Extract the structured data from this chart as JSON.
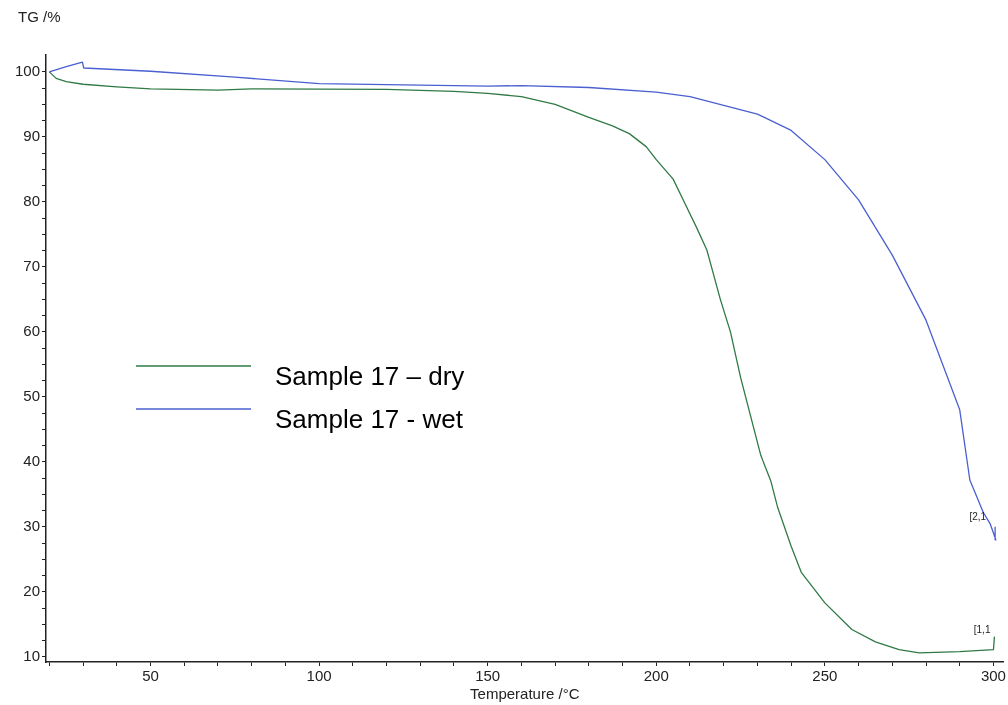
{
  "chart_data": {
    "type": "line",
    "xlabel": "Temperature /°C",
    "ylabel": "TG /%",
    "xlim": [
      19,
      303
    ],
    "ylim": [
      9.2,
      102.6
    ],
    "xticks": [
      {
        "value": 20,
        "label": null
      },
      {
        "value": 30,
        "label": null
      },
      {
        "value": 40,
        "label": null
      },
      50,
      {
        "value": 60,
        "label": null
      },
      {
        "value": 70,
        "label": null
      },
      {
        "value": 80,
        "label": null
      },
      {
        "value": 90,
        "label": null
      },
      100,
      {
        "value": 110,
        "label": null
      },
      {
        "value": 120,
        "label": null
      },
      {
        "value": 130,
        "label": null
      },
      {
        "value": 140,
        "label": null
      },
      150,
      {
        "value": 160,
        "label": null
      },
      {
        "value": 170,
        "label": null
      },
      {
        "value": 180,
        "label": null
      },
      {
        "value": 190,
        "label": null
      },
      200,
      {
        "value": 210,
        "label": null
      },
      {
        "value": 220,
        "label": null
      },
      {
        "value": 230,
        "label": null
      },
      {
        "value": 240,
        "label": null
      },
      250,
      {
        "value": 260,
        "label": null
      },
      {
        "value": 270,
        "label": null
      },
      {
        "value": 280,
        "label": null
      },
      {
        "value": 290,
        "label": null
      },
      300
    ],
    "yticks": [
      10,
      {
        "value": 12.5,
        "label": null
      },
      {
        "value": 15,
        "label": null
      },
      {
        "value": 17.5,
        "label": null
      },
      20,
      {
        "value": 22.5,
        "label": null
      },
      {
        "value": 25,
        "label": null
      },
      {
        "value": 27.5,
        "label": null
      },
      30,
      {
        "value": 32.5,
        "label": null
      },
      {
        "value": 35,
        "label": null
      },
      {
        "value": 37.5,
        "label": null
      },
      40,
      {
        "value": 42.5,
        "label": null
      },
      {
        "value": 45,
        "label": null
      },
      {
        "value": 47.5,
        "label": null
      },
      50,
      {
        "value": 52.5,
        "label": null
      },
      {
        "value": 55,
        "label": null
      },
      {
        "value": 57.5,
        "label": null
      },
      60,
      {
        "value": 62.5,
        "label": null
      },
      {
        "value": 65,
        "label": null
      },
      {
        "value": 67.5,
        "label": null
      },
      70,
      {
        "value": 72.5,
        "label": null
      },
      {
        "value": 75,
        "label": null
      },
      {
        "value": 77.5,
        "label": null
      },
      80,
      {
        "value": 82.5,
        "label": null
      },
      {
        "value": 85,
        "label": null
      },
      {
        "value": 87.5,
        "label": null
      },
      90,
      {
        "value": 92.5,
        "label": null
      },
      {
        "value": 95,
        "label": null
      },
      {
        "value": 97.5,
        "label": null
      },
      100
    ],
    "grid": false,
    "legend": "left",
    "marker": "none",
    "line_style": "solid",
    "series": [
      {
        "name": "Sample 17 – dry",
        "color": "#2f7a45",
        "x": [
          20,
          22,
          25,
          30,
          40,
          50,
          70,
          80,
          120,
          140,
          150,
          160,
          170,
          180,
          187,
          192,
          197,
          200,
          205,
          208,
          212,
          215,
          219,
          222,
          225,
          228,
          231,
          234,
          236,
          240,
          243,
          250,
          258,
          265,
          272,
          278,
          290,
          300,
          300.3
        ],
        "values": [
          100,
          99,
          98.5,
          98.1,
          97.7,
          97.4,
          97.2,
          97.4,
          97.3,
          97,
          96.7,
          96.2,
          95,
          93,
          91.7,
          90.5,
          88.5,
          86.5,
          83.5,
          80.3,
          76,
          72.6,
          65,
          60,
          53,
          47,
          41,
          37,
          33,
          27,
          23,
          18.3,
          14.2,
          12.3,
          11.1,
          10.6,
          10.8,
          11.1,
          13.1
        ]
      },
      {
        "name": "Sample 17 - wet",
        "color": "#4a5fd0",
        "x": [
          20,
          25,
          29.8,
          30.2,
          50,
          75,
          100,
          150,
          160,
          180,
          200,
          210,
          230,
          240,
          250,
          260,
          270,
          280,
          290,
          293,
          297,
          299,
          300.7,
          300.5
        ],
        "values": [
          100,
          100.8,
          101.5,
          100.6,
          100.1,
          99.2,
          98.2,
          97.8,
          97.9,
          97.6,
          96.9,
          96.2,
          93.5,
          91,
          86.5,
          80.3,
          71.8,
          61.8,
          48,
          37.2,
          32.2,
          30.5,
          28,
          30
        ]
      }
    ],
    "annotations": [
      {
        "text": "[2,1",
        "x": 299,
        "y": 30.5
      },
      {
        "text": "[1,1",
        "x": 300.3,
        "y": 13.1
      }
    ]
  }
}
